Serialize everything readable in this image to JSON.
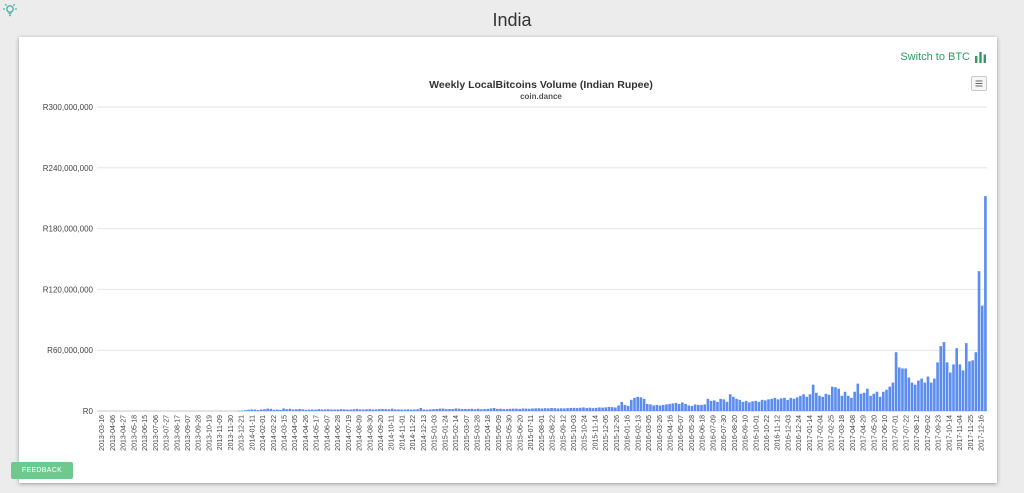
{
  "page": {
    "title": "India",
    "logo_icon": "lightbulb-icon",
    "switch_label": "Switch to BTC",
    "switch_icon": "bar-chart-icon",
    "menu_icon": "hamburger-menu-icon",
    "feedback_label": "FEEDBACK",
    "colors": {
      "accent": "#2f9a63",
      "bars": "#5b8def",
      "feedback": "#6dc98e"
    }
  },
  "chart_data": {
    "type": "bar",
    "title": "Weekly LocalBitcoins Volume (Indian Rupee)",
    "subtitle": "coin.dance",
    "xlabel": "",
    "ylabel": "",
    "ylim": [
      0,
      300000000
    ],
    "yticks": [
      0,
      60000000,
      120000000,
      180000000,
      240000000,
      300000000
    ],
    "ytick_labels": [
      "R0",
      "R60,000,000",
      "R120,000,000",
      "R180,000,000",
      "R240,000,000",
      "R300,000,000"
    ],
    "grid": true,
    "legend": false,
    "xtick_labels": [
      "2013-03-16",
      "2013-04-06",
      "2013-04-27",
      "2013-05-18",
      "2013-06-15",
      "2013-07-06",
      "2013-07-27",
      "2013-08-17",
      "2013-09-07",
      "2013-09-28",
      "2013-10-19",
      "2013-11-09",
      "2013-11-30",
      "2013-12-21",
      "2014-01-11",
      "2014-02-01",
      "2014-02-22",
      "2014-03-15",
      "2014-04-05",
      "2014-04-26",
      "2014-05-17",
      "2014-06-07",
      "2014-06-28",
      "2014-07-19",
      "2014-08-09",
      "2014-08-30",
      "2014-09-20",
      "2014-10-11",
      "2014-11-01",
      "2014-11-22",
      "2014-12-13",
      "2015-01-03",
      "2015-01-24",
      "2015-02-14",
      "2015-03-07",
      "2015-03-28",
      "2015-04-18",
      "2015-05-09",
      "2015-05-30",
      "2015-06-20",
      "2015-07-11",
      "2015-08-01",
      "2015-08-22",
      "2015-09-12",
      "2015-10-03",
      "2015-10-24",
      "2015-11-14",
      "2015-12-05",
      "2015-12-26",
      "2016-01-16",
      "2016-02-13",
      "2016-03-05",
      "2016-03-26",
      "2016-04-16",
      "2016-05-07",
      "2016-05-28",
      "2016-06-18",
      "2016-07-09",
      "2016-07-30",
      "2016-08-20",
      "2016-09-10",
      "2016-10-01",
      "2016-10-22",
      "2016-11-12",
      "2016-12-03",
      "2016-12-24",
      "2017-01-14",
      "2017-02-04",
      "2017-02-25",
      "2017-03-18",
      "2017-04-08",
      "2017-04-29",
      "2017-05-20",
      "2017-06-10",
      "2017-07-01",
      "2017-07-22",
      "2017-08-12",
      "2017-09-02",
      "2017-09-23",
      "2017-10-14",
      "2017-11-04",
      "2017-11-25",
      "2017-12-16"
    ],
    "values": [
      0,
      0,
      0,
      0,
      0,
      0,
      0,
      0,
      0,
      0,
      0,
      0,
      0,
      0,
      0,
      0,
      0,
      0,
      0,
      0,
      0,
      0,
      0,
      0,
      0,
      0,
      0,
      0,
      0,
      0,
      0,
      0,
      0,
      0,
      0,
      0,
      0,
      0,
      0,
      0,
      0,
      0,
      0,
      0,
      200000,
      500000,
      800000,
      1200000,
      1500000,
      1500000,
      1000000,
      1500000,
      1800000,
      2400000,
      2100000,
      1200000,
      1400000,
      1100000,
      2500000,
      1800000,
      2200000,
      1500000,
      1700000,
      1900000,
      1600000,
      1200000,
      1400000,
      1500000,
      1300000,
      1800000,
      1500000,
      1600000,
      1700000,
      1500000,
      1400000,
      1500000,
      1800000,
      1600000,
      1400000,
      1500000,
      1700000,
      2100000,
      1600000,
      1500000,
      1700000,
      1800000,
      1500000,
      1600000,
      1800000,
      2000000,
      1800000,
      1700000,
      2300000,
      1600000,
      1500000,
      1400000,
      1500000,
      1600000,
      1400000,
      1500000,
      1700000,
      3000000,
      1500000,
      1400000,
      1500000,
      1900000,
      2000000,
      2400000,
      2400000,
      1800000,
      2000000,
      1900000,
      2500000,
      2300000,
      1900000,
      2000000,
      2000000,
      2200000,
      1800000,
      2200000,
      1700000,
      1900000,
      2100000,
      2500000,
      3000000,
      2100000,
      2200000,
      1800000,
      1900000,
      2200000,
      2300000,
      2300000,
      2100000,
      2500000,
      2400000,
      2200000,
      2500000,
      2600000,
      2700000,
      2500000,
      2800000,
      2600000,
      3000000,
      2800000,
      2500000,
      2700000,
      2600000,
      2800000,
      3000000,
      3100000,
      2900000,
      3200000,
      3500000,
      2900000,
      3300000,
      2800000,
      3100000,
      3500000,
      3300000,
      3600000,
      4000000,
      3800000,
      3500000,
      5500000,
      9000000,
      6000000,
      5000000,
      11000000,
      13000000,
      14000000,
      13500000,
      12000000,
      7000000,
      6500000,
      5500000,
      6000000,
      5500000,
      6000000,
      6500000,
      7000000,
      7500000,
      8000000,
      7000000,
      8500000,
      7000000,
      5500000,
      5000000,
      6500000,
      6000000,
      6000000,
      6500000,
      12000000,
      10000000,
      10500000,
      9000000,
      12000000,
      11500000,
      9000000,
      16500000,
      14000000,
      12000000,
      11000000,
      9000000,
      10000000,
      8500000,
      9500000,
      10000000,
      9000000,
      11000000,
      10500000,
      11500000,
      12000000,
      13000000,
      11500000,
      12500000,
      13000000,
      11000000,
      13000000,
      12000000,
      13500000,
      15000000,
      16500000,
      14000000,
      16500000,
      26000000,
      18000000,
      15000000,
      14000000,
      17000000,
      16000000,
      24000000,
      23500000,
      22000000,
      15000000,
      19000000,
      15000000,
      13000000,
      19000000,
      27000000,
      17000000,
      18000000,
      22000000,
      15000000,
      17000000,
      19000000,
      14000000,
      19000000,
      21000000,
      24000000,
      28000000,
      58000000,
      43000000,
      42000000,
      42000000,
      33000000,
      28000000,
      26000000,
      30000000,
      32000000,
      28000000,
      34000000,
      28000000,
      32000000,
      48000000,
      64000000,
      68000000,
      48000000,
      38000000,
      46000000,
      62000000,
      46000000,
      40000000,
      67000000,
      49000000,
      50000000,
      58000000,
      138000000,
      104000000,
      212000000
    ]
  }
}
